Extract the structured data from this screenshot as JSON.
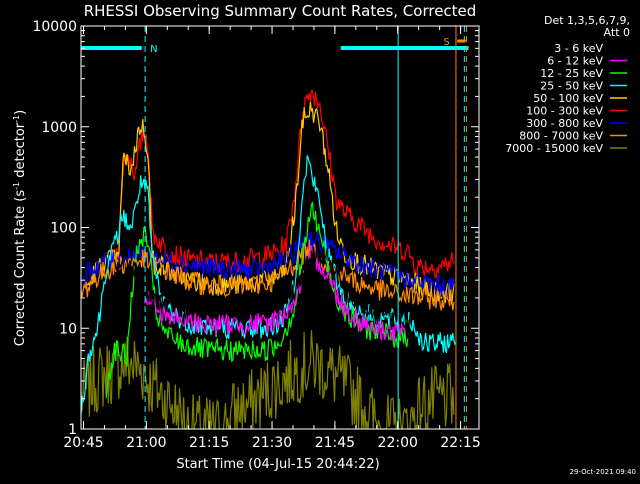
{
  "chart_data": {
    "type": "line",
    "title": "RHESSI Observing Summary Count Rates, Corrected",
    "xlabel": "Start Time (04-Jul-15 20:44:22)",
    "ylabel_main": "Corrected Count Rate (s",
    "ylabel_sup1": "-1",
    "ylabel_mid": " detector",
    "ylabel_sup2": "-1",
    "ylabel_end": ")",
    "ylabel": "Corrected Count Rate (s-1 detector-1)",
    "y_scale": "log",
    "ylim": [
      1,
      10000
    ],
    "xlim_minutes": [
      0,
      95
    ],
    "x_ticks": [
      {
        "label": "20:45",
        "min": 0.6
      },
      {
        "label": "21:00",
        "min": 15.6
      },
      {
        "label": "21:15",
        "min": 30.6
      },
      {
        "label": "21:30",
        "min": 45.6
      },
      {
        "label": "21:45",
        "min": 60.6
      },
      {
        "label": "22:00",
        "min": 75.6
      },
      {
        "label": "22:15",
        "min": 90.6
      }
    ],
    "y_ticks": [
      {
        "label": "1",
        "v": 1
      },
      {
        "label": "10",
        "v": 10
      },
      {
        "label": "100",
        "v": 100
      },
      {
        "label": "1000",
        "v": 1000
      },
      {
        "label": "10000",
        "v": 10000
      }
    ],
    "legend_header": [
      "Det 1,3,5,6,7,9,",
      "Att 0"
    ],
    "legend_position": "right",
    "series": [
      {
        "name": "3 - 6 keV",
        "color": "#000000",
        "start": 8.0,
        "end": 78.5,
        "points": [
          [
            8,
            45
          ],
          [
            11,
            45
          ],
          [
            13,
            40
          ],
          [
            14,
            28
          ],
          [
            15,
            25
          ],
          [
            16,
            23
          ],
          [
            17,
            20
          ],
          [
            19,
            17
          ],
          [
            23,
            16
          ],
          [
            27,
            16
          ],
          [
            35,
            16
          ],
          [
            45,
            18
          ],
          [
            48,
            19
          ],
          [
            51,
            24
          ],
          [
            53,
            35
          ],
          [
            56,
            55
          ],
          [
            58,
            56
          ],
          [
            60,
            40
          ],
          [
            62,
            30
          ],
          [
            64,
            22
          ],
          [
            66,
            19
          ],
          [
            68,
            16
          ],
          [
            70,
            14
          ],
          [
            74,
            13
          ],
          [
            78.5,
            13
          ]
        ]
      },
      {
        "name": "6 - 12 keV",
        "color": "#ff00ff",
        "start": 15.0,
        "end": 77.5,
        "points": [
          [
            15,
            22
          ],
          [
            16,
            20
          ],
          [
            18,
            16
          ],
          [
            20,
            14
          ],
          [
            24,
            12
          ],
          [
            30,
            11
          ],
          [
            38,
            11
          ],
          [
            44,
            11
          ],
          [
            48,
            13
          ],
          [
            51,
            19
          ],
          [
            53,
            32
          ],
          [
            55,
            52
          ],
          [
            57,
            45
          ],
          [
            59,
            33
          ],
          [
            61,
            22
          ],
          [
            63,
            16
          ],
          [
            65,
            13
          ],
          [
            68,
            11
          ],
          [
            71,
            10
          ],
          [
            74,
            9
          ],
          [
            77.5,
            9
          ]
        ]
      },
      {
        "name": "12 - 25 keV",
        "color": "#00ff00",
        "start": 6.0,
        "end": 78.0,
        "points": [
          [
            6,
            2.5
          ],
          [
            7,
            4
          ],
          [
            8,
            6
          ],
          [
            9,
            6
          ],
          [
            11,
            5
          ],
          [
            12,
            20
          ],
          [
            13,
            48
          ],
          [
            14,
            64
          ],
          [
            15,
            88
          ],
          [
            16,
            72
          ],
          [
            17,
            30
          ],
          [
            18,
            14
          ],
          [
            20,
            9
          ],
          [
            24,
            7
          ],
          [
            30,
            6
          ],
          [
            38,
            6
          ],
          [
            44,
            6
          ],
          [
            47,
            7
          ],
          [
            49,
            10
          ],
          [
            51,
            16
          ],
          [
            53,
            55
          ],
          [
            55,
            160
          ],
          [
            57,
            90
          ],
          [
            59,
            40
          ],
          [
            61,
            20
          ],
          [
            64,
            13
          ],
          [
            68,
            10
          ],
          [
            72,
            9
          ],
          [
            75,
            8
          ],
          [
            78,
            8
          ]
        ]
      },
      {
        "name": "25 - 50 keV",
        "color": "#00ffff",
        "start": 0.0,
        "end": 89.5,
        "points": [
          [
            0,
            1.5
          ],
          [
            2,
            6
          ],
          [
            4,
            10
          ],
          [
            6,
            40
          ],
          [
            8,
            65
          ],
          [
            10,
            130
          ],
          [
            12,
            100
          ],
          [
            13,
            150
          ],
          [
            14,
            260
          ],
          [
            15,
            280
          ],
          [
            16,
            200
          ],
          [
            17,
            50
          ],
          [
            19,
            20
          ],
          [
            22,
            14
          ],
          [
            26,
            11
          ],
          [
            32,
            10
          ],
          [
            38,
            10
          ],
          [
            44,
            10
          ],
          [
            47,
            11
          ],
          [
            49,
            14
          ],
          [
            51,
            30
          ],
          [
            53,
            210
          ],
          [
            54,
            480
          ],
          [
            55,
            350
          ],
          [
            57,
            170
          ],
          [
            59,
            55
          ],
          [
            61,
            30
          ],
          [
            63,
            20
          ],
          [
            66,
            15
          ],
          [
            70,
            13
          ],
          [
            74,
            12
          ],
          [
            78,
            13
          ],
          [
            82,
            7
          ],
          [
            85,
            7
          ],
          [
            89.5,
            7.5
          ]
        ]
      },
      {
        "name": "50 - 100 keV",
        "color": "#ffcc00",
        "start": 1.5,
        "end": 89.0,
        "points": [
          [
            1.5,
            25
          ],
          [
            3,
            35
          ],
          [
            5,
            42
          ],
          [
            7,
            48
          ],
          [
            9,
            48
          ],
          [
            10,
            480
          ],
          [
            12,
            380
          ],
          [
            14,
            1020
          ],
          [
            15,
            960
          ],
          [
            16,
            580
          ],
          [
            17,
            50
          ],
          [
            19,
            42
          ],
          [
            22,
            35
          ],
          [
            26,
            30
          ],
          [
            32,
            27
          ],
          [
            38,
            27
          ],
          [
            44,
            30
          ],
          [
            47,
            32
          ],
          [
            49,
            40
          ],
          [
            51,
            140
          ],
          [
            53,
            1200
          ],
          [
            55,
            1500
          ],
          [
            57,
            1100
          ],
          [
            59,
            380
          ],
          [
            61,
            90
          ],
          [
            63,
            55
          ],
          [
            66,
            45
          ],
          [
            70,
            38
          ],
          [
            74,
            33
          ],
          [
            78,
            30
          ],
          [
            82,
            25
          ],
          [
            85,
            23
          ],
          [
            89,
            22
          ]
        ]
      },
      {
        "name": "100 - 300 keV",
        "color": "#ff0000",
        "start": 7.0,
        "end": 89.0,
        "points": [
          [
            7,
            42
          ],
          [
            9,
            60
          ],
          [
            10,
            400
          ],
          [
            11,
            550
          ],
          [
            12,
            450
          ],
          [
            13,
            330
          ],
          [
            14,
            620
          ],
          [
            15,
            920
          ],
          [
            16,
            700
          ],
          [
            17,
            90
          ],
          [
            19,
            70
          ],
          [
            22,
            55
          ],
          [
            26,
            47
          ],
          [
            32,
            45
          ],
          [
            38,
            46
          ],
          [
            44,
            52
          ],
          [
            47,
            58
          ],
          [
            49,
            70
          ],
          [
            51,
            220
          ],
          [
            53,
            1600
          ],
          [
            55,
            2300
          ],
          [
            57,
            1700
          ],
          [
            59,
            600
          ],
          [
            61,
            190
          ],
          [
            63,
            140
          ],
          [
            66,
            110
          ],
          [
            70,
            80
          ],
          [
            74,
            65
          ],
          [
            78,
            58
          ],
          [
            80,
            42
          ],
          [
            84,
            40
          ],
          [
            87,
            43
          ],
          [
            89,
            47
          ]
        ]
      },
      {
        "name": "300 - 800 keV",
        "color": "#0000ff",
        "start": 0.5,
        "end": 89.0,
        "points": [
          [
            0.5,
            32
          ],
          [
            3,
            40
          ],
          [
            6,
            46
          ],
          [
            9,
            48
          ],
          [
            12,
            52
          ],
          [
            15,
            55
          ],
          [
            17,
            52
          ],
          [
            20,
            47
          ],
          [
            25,
            43
          ],
          [
            30,
            40
          ],
          [
            36,
            38
          ],
          [
            42,
            38
          ],
          [
            46,
            42
          ],
          [
            49,
            48
          ],
          [
            51,
            58
          ],
          [
            53,
            75
          ],
          [
            55,
            78
          ],
          [
            57,
            70
          ],
          [
            60,
            60
          ],
          [
            63,
            52
          ],
          [
            66,
            45
          ],
          [
            70,
            38
          ],
          [
            74,
            34
          ],
          [
            78,
            30
          ],
          [
            82,
            28
          ],
          [
            86,
            26
          ],
          [
            89,
            26
          ]
        ]
      },
      {
        "name": "800 - 7000 keV",
        "color": "#ff8800",
        "start": 0.0,
        "end": 89.0,
        "points": [
          [
            0,
            22
          ],
          [
            3,
            30
          ],
          [
            6,
            38
          ],
          [
            9,
            43
          ],
          [
            12,
            45
          ],
          [
            15,
            48
          ],
          [
            18,
            42
          ],
          [
            21,
            36
          ],
          [
            25,
            30
          ],
          [
            30,
            27
          ],
          [
            36,
            26
          ],
          [
            42,
            27
          ],
          [
            46,
            30
          ],
          [
            49,
            36
          ],
          [
            51,
            44
          ],
          [
            53,
            55
          ],
          [
            55,
            60
          ],
          [
            57,
            50
          ],
          [
            60,
            40
          ],
          [
            63,
            33
          ],
          [
            66,
            28
          ],
          [
            70,
            25
          ],
          [
            74,
            22
          ],
          [
            78,
            21
          ],
          [
            82,
            20
          ],
          [
            86,
            19
          ],
          [
            89,
            19
          ]
        ]
      },
      {
        "name": "7000 - 15000 keV",
        "color": "#808000",
        "start": 0.0,
        "end": 89.0,
        "points": [
          [
            0,
            2
          ],
          [
            3,
            3
          ],
          [
            6,
            3.5
          ],
          [
            8,
            4
          ],
          [
            10,
            4.5
          ],
          [
            12,
            4.5
          ],
          [
            14,
            4
          ],
          [
            15,
            3.8
          ],
          [
            16,
            3
          ],
          [
            18,
            2.5
          ],
          [
            20,
            2
          ],
          [
            22,
            1.7
          ],
          [
            24,
            1.3
          ],
          [
            26,
            1
          ],
          [
            34,
            1
          ],
          [
            36,
            1.4
          ],
          [
            38,
            1.6
          ],
          [
            40,
            1.7
          ],
          [
            42,
            2
          ],
          [
            44,
            2.3
          ],
          [
            46,
            2.7
          ],
          [
            48,
            3
          ],
          [
            50,
            3.5
          ],
          [
            52,
            4
          ],
          [
            54,
            4.3
          ],
          [
            56,
            4.5
          ],
          [
            58,
            4
          ],
          [
            60,
            3.5
          ],
          [
            62,
            3
          ],
          [
            64,
            2.5
          ],
          [
            66,
            2
          ],
          [
            68,
            1.6
          ],
          [
            70,
            1.2
          ],
          [
            72,
            1
          ],
          [
            78,
            1
          ],
          [
            80,
            1.5
          ],
          [
            82,
            1.8
          ],
          [
            84,
            1.9
          ],
          [
            86,
            2
          ],
          [
            89,
            2
          ]
        ]
      }
    ],
    "annotations": [
      {
        "label": "N",
        "color": "#00ffff"
      },
      {
        "label": "S",
        "color": "#ff8800"
      }
    ],
    "timestamp": "29-Oct-2021 09:40"
  }
}
